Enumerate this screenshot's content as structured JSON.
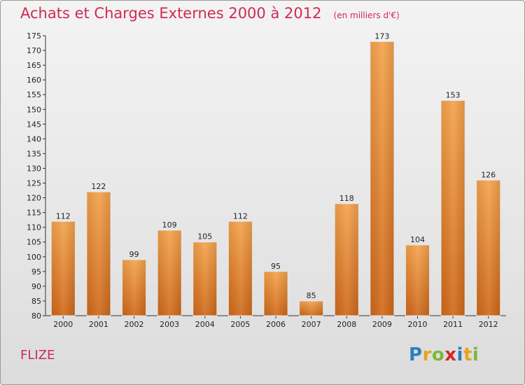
{
  "page": {
    "title": "Achats et Charges Externes 2000 à 2012",
    "subtitle": "(en milliers d'€)",
    "commune": "FLIZE",
    "logo_text": "Proxiti",
    "logo_letters": [
      "P",
      "r",
      "o",
      "x",
      "i",
      "t",
      "i"
    ],
    "logo_colors": [
      "#2a7fc0",
      "#e9a31c",
      "#7bb83a",
      "#d8242a",
      "#2a7fc0",
      "#e9a31c",
      "#7bb83a"
    ]
  },
  "chart_data": {
    "type": "bar",
    "title": "Achats et Charges Externes 2000 à 2012",
    "subtitle": "(en milliers d'€)",
    "categories": [
      "2000",
      "2001",
      "2002",
      "2003",
      "2004",
      "2005",
      "2006",
      "2007",
      "2008",
      "2009",
      "2010",
      "2011",
      "2012"
    ],
    "values": [
      112,
      122,
      99,
      109,
      105,
      112,
      95,
      85,
      118,
      173,
      104,
      153,
      126
    ],
    "ylim": [
      80,
      175
    ],
    "yticks": [
      80,
      85,
      90,
      95,
      100,
      105,
      110,
      115,
      120,
      125,
      130,
      135,
      140,
      145,
      150,
      155,
      160,
      165,
      170,
      175
    ],
    "grid": false,
    "bar_color_top": "#f4a24a",
    "bar_color_bottom": "#cf6718"
  }
}
